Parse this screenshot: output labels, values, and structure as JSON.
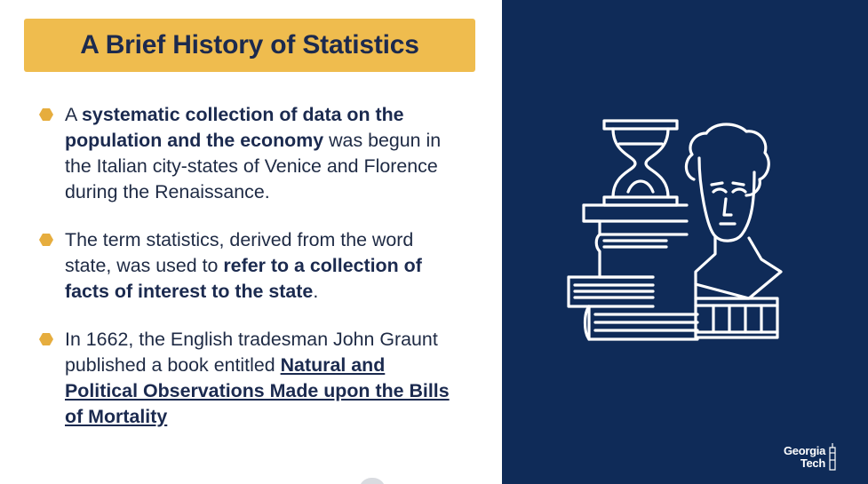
{
  "slide": {
    "title": "A Brief History of Statistics",
    "bullets": [
      {
        "parts": [
          {
            "text": "A ",
            "style": "normal"
          },
          {
            "text": "systematic collection of data on the population and the economy",
            "style": "bold"
          },
          {
            "text": " was begun in the Italian city-states of Venice and Florence during the Renaissance.",
            "style": "normal"
          }
        ]
      },
      {
        "parts": [
          {
            "text": "The term statistics, derived from the word state, was used to ",
            "style": "normal"
          },
          {
            "text": "refer to a collection of facts of interest to the state",
            "style": "bold"
          },
          {
            "text": ".",
            "style": "normal"
          }
        ]
      },
      {
        "parts": [
          {
            "text": "In 1662, the English tradesman John Graunt published a book entitled ",
            "style": "normal"
          },
          {
            "text": "Natural and Political Observations Made upon the Bills of Mortality",
            "style": "bold-underline"
          }
        ]
      }
    ]
  },
  "logo": {
    "line1": "Georgia",
    "line2": "Tech"
  },
  "colors": {
    "title_bar": "#efbc4e",
    "bullet_marker": "#e6ad3e",
    "text": "#1e2a44",
    "panel": "#0f2b58",
    "icon_stroke": "#ffffff"
  },
  "icons": {
    "illustration": "history-books-hourglass-bust-icon",
    "bullet": "hexagon-bullet-icon"
  }
}
